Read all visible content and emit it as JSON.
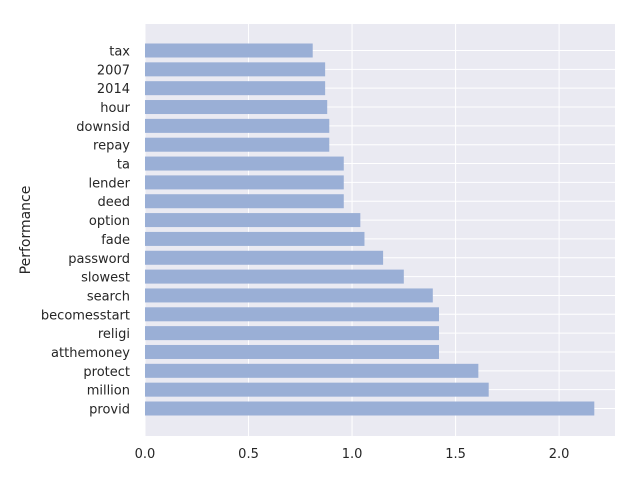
{
  "chart_data": {
    "type": "bar",
    "orientation": "horizontal",
    "title": "",
    "xlabel": "",
    "ylabel": "Performance",
    "categories": [
      "tax",
      "2007",
      "2014",
      "hour",
      "downsid",
      "repay",
      "ta",
      "lender",
      "deed",
      "option",
      "fade",
      "password",
      "slowest",
      "search",
      "becomesstart",
      "religi",
      "atthemoney",
      "protect",
      "million",
      "provid"
    ],
    "values": [
      0.81,
      0.87,
      0.87,
      0.88,
      0.89,
      0.89,
      0.96,
      0.96,
      0.96,
      1.04,
      1.06,
      1.15,
      1.25,
      1.39,
      1.42,
      1.42,
      1.42,
      1.61,
      1.66,
      2.17
    ],
    "xlim": [
      0,
      2.27
    ],
    "xticks": [
      0.0,
      0.5,
      1.0,
      1.5,
      2.0
    ],
    "xtick_labels": [
      "0.0",
      "0.5",
      "1.0",
      "1.5",
      "2.0"
    ],
    "grid": true,
    "colors": {
      "bar": "#9aafd6",
      "background": "#eaeaf2",
      "grid": "#ffffff",
      "text": "#262626"
    }
  }
}
